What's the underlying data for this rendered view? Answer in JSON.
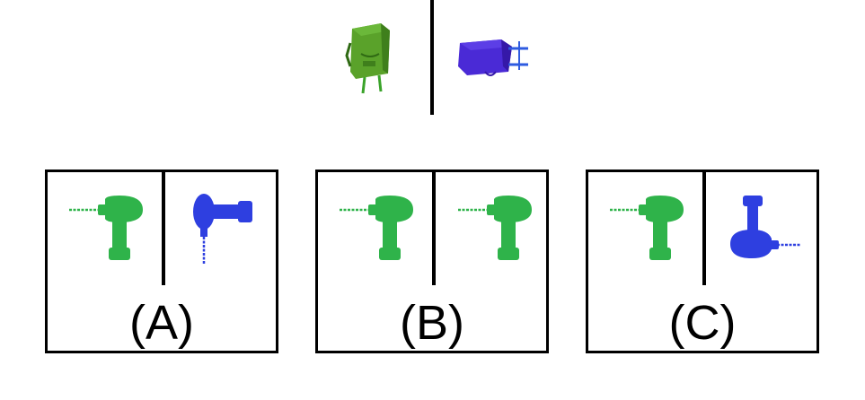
{
  "reference": {
    "left_object": "green-box-object",
    "right_object": "blue-box-object-rotated"
  },
  "options": [
    {
      "label": "(A)",
      "left_object": "green-drill-icon",
      "right_object": "blue-drill-rotated-icon"
    },
    {
      "label": "(B)",
      "left_object": "green-drill-icon",
      "right_object": "green-drill-icon"
    },
    {
      "label": "(C)",
      "left_object": "green-drill-icon",
      "right_object": "blue-drill-rotated-icon"
    }
  ],
  "colors": {
    "green": "#2fb34a",
    "green_dark": "#1e8f37",
    "blue": "#2e3fe0",
    "blue_dark": "#1f2bb3",
    "box_green": "#5aa22a",
    "box_blue": "#4a2ad6"
  }
}
